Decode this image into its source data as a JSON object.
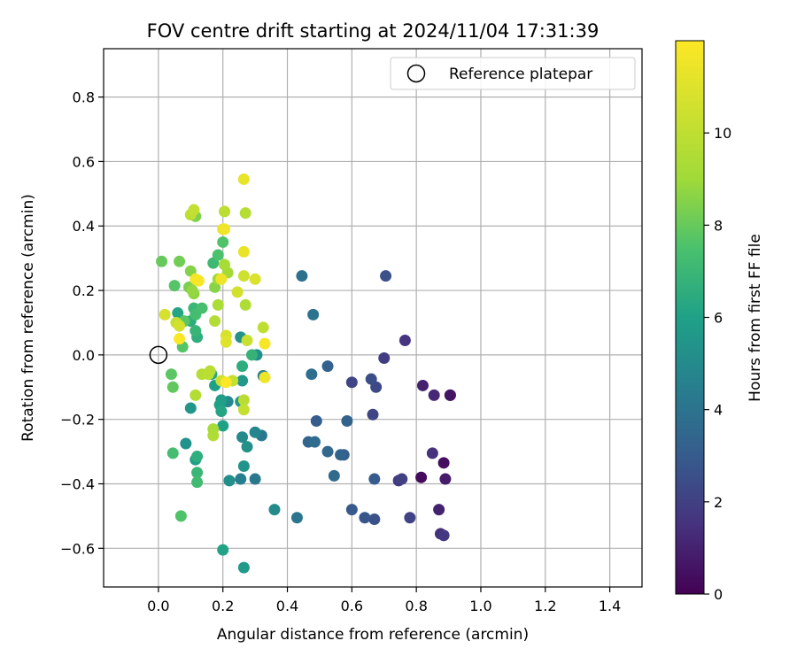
{
  "chart_data": {
    "type": "scatter",
    "title": "FOV centre drift starting at 2024/11/04 17:31:39",
    "xlabel": "Angular distance from reference (arcmin)",
    "ylabel": "Rotation from reference (arcmin)",
    "xlim": [
      -0.17,
      1.5
    ],
    "ylim": [
      -0.72,
      0.95
    ],
    "xticks": [
      "0.0",
      "0.2",
      "0.4",
      "0.6",
      "0.8",
      "1.0",
      "1.2",
      "1.4"
    ],
    "yticks": [
      "−0.6",
      "−0.4",
      "−0.2",
      "0.0",
      "0.2",
      "0.4",
      "0.6",
      "0.8"
    ],
    "grid": true,
    "legend": {
      "position": "top-right",
      "entries": [
        "Reference platepar"
      ]
    },
    "colorbar": {
      "label": "Hours from first FF file",
      "colormap": "viridis",
      "range": [
        0,
        12
      ],
      "ticks": [
        "0",
        "2",
        "4",
        "6",
        "8",
        "10"
      ]
    },
    "reference_point": {
      "x": 0.0,
      "y": 0.0
    },
    "series": [
      {
        "points": [
          {
            "x": 0.905,
            "y": -0.125,
            "h": 0.2
          },
          {
            "x": 0.905,
            "y": -0.125,
            "h": 0.6
          },
          {
            "x": 0.885,
            "y": -0.335,
            "h": 0.4
          },
          {
            "x": 0.89,
            "y": -0.385,
            "h": 0.8
          },
          {
            "x": 0.87,
            "y": -0.48,
            "h": 1.0
          },
          {
            "x": 0.815,
            "y": -0.38,
            "h": 0.3
          },
          {
            "x": 0.875,
            "y": -0.555,
            "h": 1.4
          },
          {
            "x": 0.885,
            "y": -0.56,
            "h": 1.7
          },
          {
            "x": 0.85,
            "y": -0.305,
            "h": 1.5
          },
          {
            "x": 0.855,
            "y": -0.125,
            "h": 1.2
          },
          {
            "x": 0.82,
            "y": -0.095,
            "h": 1.0
          },
          {
            "x": 0.765,
            "y": 0.045,
            "h": 1.6
          },
          {
            "x": 0.745,
            "y": -0.39,
            "h": 1.8
          },
          {
            "x": 0.755,
            "y": -0.385,
            "h": 2.0
          },
          {
            "x": 0.78,
            "y": -0.505,
            "h": 2.1
          },
          {
            "x": 0.7,
            "y": -0.01,
            "h": 1.9
          },
          {
            "x": 0.705,
            "y": 0.245,
            "h": 2.6
          },
          {
            "x": 0.665,
            "y": -0.185,
            "h": 2.2
          },
          {
            "x": 0.66,
            "y": -0.075,
            "h": 2.5
          },
          {
            "x": 0.675,
            "y": -0.1,
            "h": 2.3
          },
          {
            "x": 0.67,
            "y": -0.385,
            "h": 3.0
          },
          {
            "x": 0.64,
            "y": -0.505,
            "h": 2.8
          },
          {
            "x": 0.67,
            "y": -0.51,
            "h": 2.6
          },
          {
            "x": 0.6,
            "y": -0.48,
            "h": 2.9
          },
          {
            "x": 0.6,
            "y": -0.085,
            "h": 2.2
          },
          {
            "x": 0.585,
            "y": -0.205,
            "h": 3.3
          },
          {
            "x": 0.575,
            "y": -0.31,
            "h": 3.1
          },
          {
            "x": 0.565,
            "y": -0.31,
            "h": 3.4
          },
          {
            "x": 0.545,
            "y": -0.375,
            "h": 3.6
          },
          {
            "x": 0.525,
            "y": -0.3,
            "h": 3.5
          },
          {
            "x": 0.525,
            "y": -0.035,
            "h": 3.2
          },
          {
            "x": 0.49,
            "y": -0.205,
            "h": 3.0
          },
          {
            "x": 0.485,
            "y": -0.27,
            "h": 3.7
          },
          {
            "x": 0.465,
            "y": -0.27,
            "h": 3.4
          },
          {
            "x": 0.475,
            "y": -0.06,
            "h": 3.8
          },
          {
            "x": 0.48,
            "y": 0.125,
            "h": 4.0
          },
          {
            "x": 0.445,
            "y": 0.245,
            "h": 3.9
          },
          {
            "x": 0.43,
            "y": -0.505,
            "h": 4.1
          },
          {
            "x": 0.36,
            "y": -0.48,
            "h": 5.0
          },
          {
            "x": 0.325,
            "y": -0.065,
            "h": 4.6
          },
          {
            "x": 0.32,
            "y": -0.25,
            "h": 4.3
          },
          {
            "x": 0.3,
            "y": -0.24,
            "h": 4.8
          },
          {
            "x": 0.305,
            "y": 0.0,
            "h": 5.2
          },
          {
            "x": 0.3,
            "y": -0.385,
            "h": 4.2
          },
          {
            "x": 0.275,
            "y": -0.285,
            "h": 5.3
          },
          {
            "x": 0.265,
            "y": -0.345,
            "h": 5.4
          },
          {
            "x": 0.255,
            "y": -0.385,
            "h": 4.5
          },
          {
            "x": 0.26,
            "y": -0.255,
            "h": 5.0
          },
          {
            "x": 0.265,
            "y": -0.66,
            "h": 5.7
          },
          {
            "x": 0.2,
            "y": -0.605,
            "h": 6.1
          },
          {
            "x": 0.22,
            "y": -0.39,
            "h": 5.2
          },
          {
            "x": 0.255,
            "y": 0.055,
            "h": 5.3
          },
          {
            "x": 0.255,
            "y": -0.145,
            "h": 5.5
          },
          {
            "x": 0.26,
            "y": -0.08,
            "h": 5.6
          },
          {
            "x": 0.215,
            "y": -0.145,
            "h": 4.9
          },
          {
            "x": 0.195,
            "y": -0.14,
            "h": 5.8
          },
          {
            "x": 0.2,
            "y": -0.22,
            "h": 6.0
          },
          {
            "x": 0.195,
            "y": -0.175,
            "h": 6.2
          },
          {
            "x": 0.19,
            "y": -0.155,
            "h": 6.0
          },
          {
            "x": 0.175,
            "y": -0.095,
            "h": 5.9
          },
          {
            "x": 0.165,
            "y": -0.06,
            "h": 6.3
          },
          {
            "x": 0.26,
            "y": -0.035,
            "h": 6.5
          },
          {
            "x": 0.29,
            "y": 0.0,
            "h": 6.8
          },
          {
            "x": 0.085,
            "y": -0.275,
            "h": 5.4
          },
          {
            "x": 0.1,
            "y": -0.165,
            "h": 5.5
          },
          {
            "x": 0.115,
            "y": -0.325,
            "h": 6.0
          },
          {
            "x": 0.12,
            "y": -0.315,
            "h": 6.6
          },
          {
            "x": 0.12,
            "y": -0.365,
            "h": 7.0
          },
          {
            "x": 0.12,
            "y": -0.395,
            "h": 7.2
          },
          {
            "x": 0.045,
            "y": -0.305,
            "h": 7.3
          },
          {
            "x": 0.07,
            "y": -0.5,
            "h": 7.6
          },
          {
            "x": 0.04,
            "y": -0.06,
            "h": 7.8
          },
          {
            "x": 0.045,
            "y": -0.1,
            "h": 7.9
          },
          {
            "x": 0.075,
            "y": 0.025,
            "h": 7.7
          },
          {
            "x": 0.06,
            "y": 0.13,
            "h": 6.2
          },
          {
            "x": 0.1,
            "y": 0.105,
            "h": 6.5
          },
          {
            "x": 0.115,
            "y": 0.075,
            "h": 6.9
          },
          {
            "x": 0.12,
            "y": 0.055,
            "h": 6.6
          },
          {
            "x": 0.11,
            "y": 0.145,
            "h": 7.0
          },
          {
            "x": 0.115,
            "y": 0.125,
            "h": 7.3
          },
          {
            "x": 0.135,
            "y": 0.145,
            "h": 7.4
          },
          {
            "x": 0.17,
            "y": 0.285,
            "h": 7.1
          },
          {
            "x": 0.185,
            "y": 0.31,
            "h": 7.5
          },
          {
            "x": 0.2,
            "y": 0.35,
            "h": 7.6
          },
          {
            "x": 0.08,
            "y": 0.105,
            "h": 7.8
          },
          {
            "x": 0.05,
            "y": 0.215,
            "h": 7.7
          },
          {
            "x": 0.01,
            "y": 0.29,
            "h": 8.0
          },
          {
            "x": 0.065,
            "y": 0.29,
            "h": 8.2
          },
          {
            "x": 0.095,
            "y": 0.21,
            "h": 8.3
          },
          {
            "x": 0.1,
            "y": 0.26,
            "h": 8.5
          },
          {
            "x": 0.11,
            "y": 0.19,
            "h": 8.7
          },
          {
            "x": 0.105,
            "y": 0.2,
            "h": 8.8
          },
          {
            "x": 0.115,
            "y": 0.43,
            "h": 8.4
          },
          {
            "x": 0.175,
            "y": 0.21,
            "h": 8.6
          },
          {
            "x": 0.185,
            "y": 0.235,
            "h": 9.0
          },
          {
            "x": 0.215,
            "y": 0.255,
            "h": 9.1
          },
          {
            "x": 0.205,
            "y": 0.28,
            "h": 9.3
          },
          {
            "x": 0.185,
            "y": 0.155,
            "h": 9.4
          },
          {
            "x": 0.175,
            "y": 0.105,
            "h": 9.6
          },
          {
            "x": 0.17,
            "y": -0.23,
            "h": 9.2
          },
          {
            "x": 0.17,
            "y": -0.25,
            "h": 9.5
          },
          {
            "x": 0.135,
            "y": -0.06,
            "h": 9.7
          },
          {
            "x": 0.16,
            "y": -0.05,
            "h": 9.8
          },
          {
            "x": 0.155,
            "y": -0.06,
            "h": 9.9
          },
          {
            "x": 0.115,
            "y": -0.125,
            "h": 9.6
          },
          {
            "x": 0.265,
            "y": -0.14,
            "h": 9.8
          },
          {
            "x": 0.265,
            "y": -0.17,
            "h": 10.2
          },
          {
            "x": 0.23,
            "y": -0.08,
            "h": 10.1
          },
          {
            "x": 0.195,
            "y": -0.08,
            "h": 10.4
          },
          {
            "x": 0.275,
            "y": 0.045,
            "h": 10.3
          },
          {
            "x": 0.325,
            "y": 0.085,
            "h": 10.0
          },
          {
            "x": 0.27,
            "y": 0.155,
            "h": 9.5
          },
          {
            "x": 0.265,
            "y": 0.245,
            "h": 10.5
          },
          {
            "x": 0.245,
            "y": 0.195,
            "h": 10.6
          },
          {
            "x": 0.27,
            "y": 0.44,
            "h": 9.7
          },
          {
            "x": 0.205,
            "y": 0.445,
            "h": 9.9
          },
          {
            "x": 0.1,
            "y": 0.435,
            "h": 10.0
          },
          {
            "x": 0.11,
            "y": 0.45,
            "h": 10.1
          },
          {
            "x": 0.02,
            "y": 0.125,
            "h": 10.7
          },
          {
            "x": 0.055,
            "y": 0.1,
            "h": 10.2
          },
          {
            "x": 0.065,
            "y": 0.09,
            "h": 10.6
          },
          {
            "x": 0.21,
            "y": 0.06,
            "h": 10.8
          },
          {
            "x": 0.21,
            "y": 0.04,
            "h": 11.0
          },
          {
            "x": 0.3,
            "y": 0.235,
            "h": 10.9
          },
          {
            "x": 0.265,
            "y": 0.545,
            "h": 11.3
          },
          {
            "x": 0.265,
            "y": 0.32,
            "h": 11.4
          },
          {
            "x": 0.2,
            "y": 0.39,
            "h": 11.2
          },
          {
            "x": 0.205,
            "y": 0.39,
            "h": 11.6
          },
          {
            "x": 0.195,
            "y": 0.235,
            "h": 11.5
          },
          {
            "x": 0.115,
            "y": 0.235,
            "h": 11.7
          },
          {
            "x": 0.125,
            "y": 0.23,
            "h": 11.8
          },
          {
            "x": 0.065,
            "y": 0.05,
            "h": 11.9
          },
          {
            "x": 0.33,
            "y": 0.035,
            "h": 11.8
          },
          {
            "x": 0.33,
            "y": -0.07,
            "h": 11.5
          },
          {
            "x": 0.21,
            "y": -0.085,
            "h": 11.9
          }
        ]
      }
    ]
  },
  "colors": {
    "ref_marker_edge": "#000000",
    "grid": "#b0b0b0",
    "axes": "#000000"
  }
}
